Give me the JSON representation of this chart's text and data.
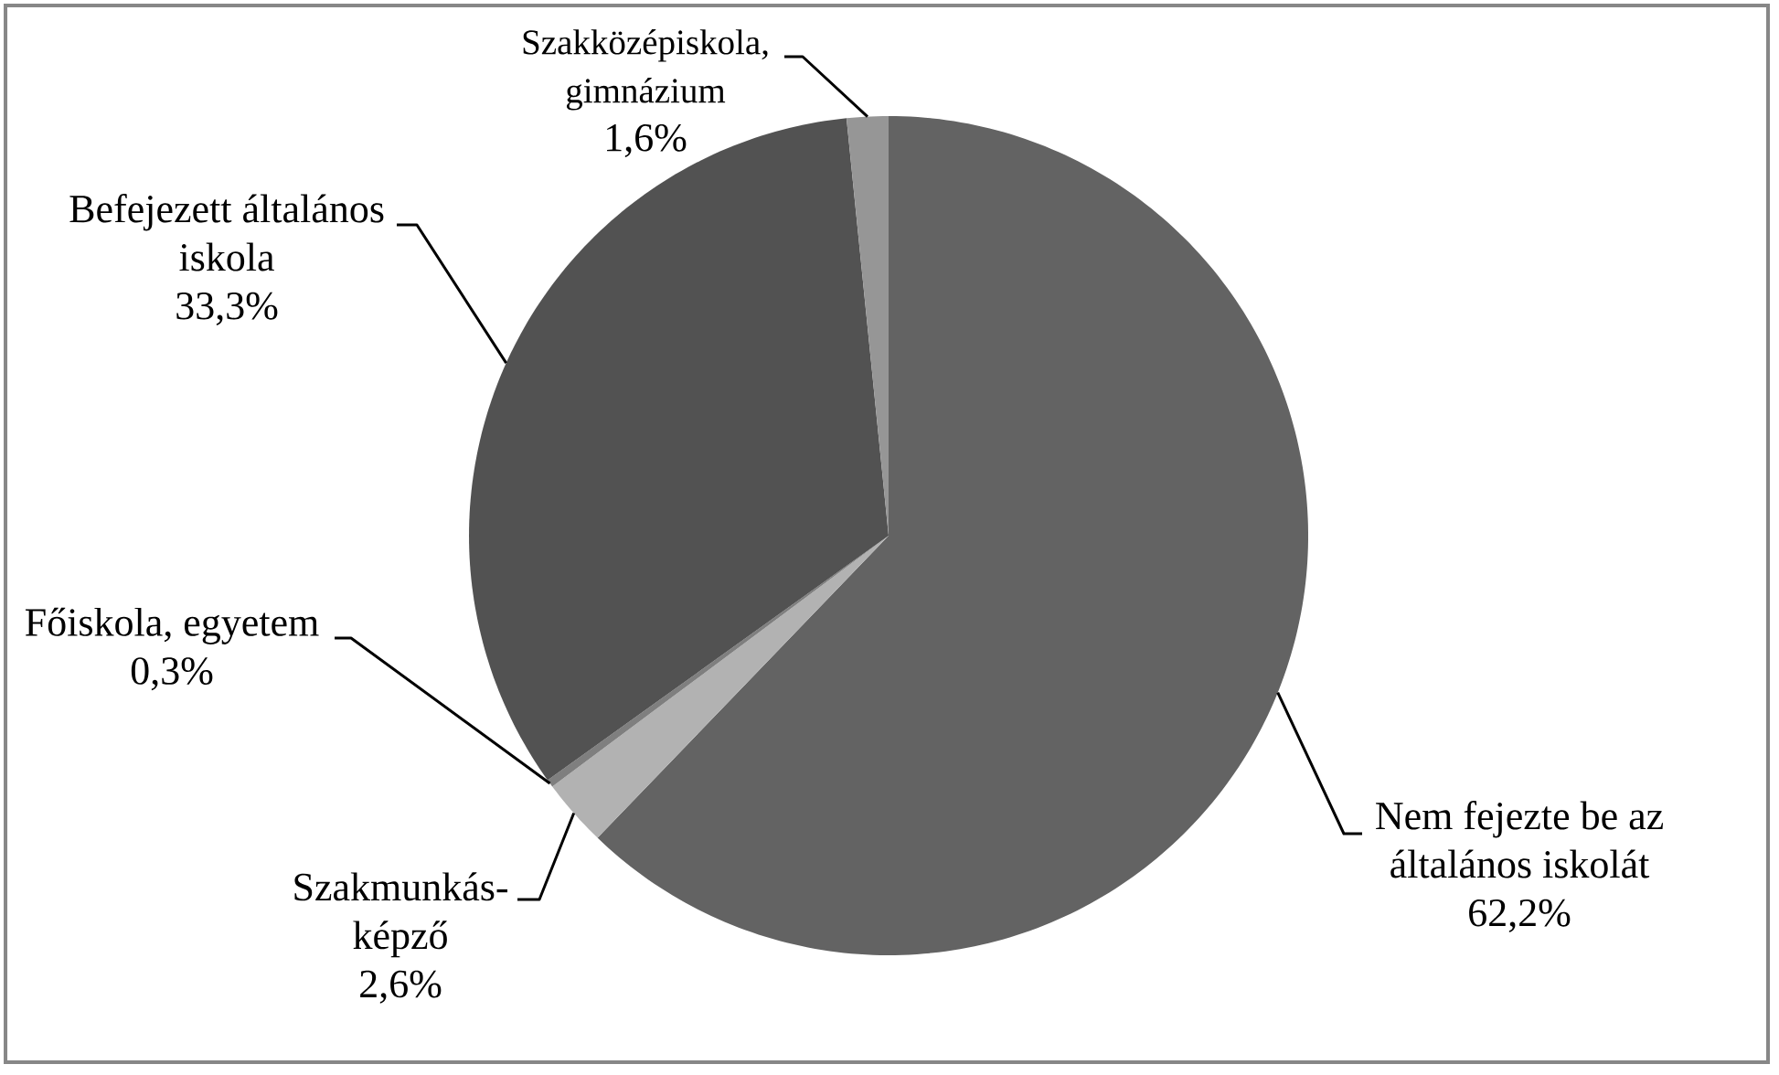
{
  "chart_data": {
    "type": "pie",
    "categories": [
      "Nem fejezte be az általános iskolát",
      "Szakmunkás-képző",
      "Főiskola, egyetem",
      "Befejezett általános iskola",
      "Szakközépiskola, gimnázium"
    ],
    "values": [
      62.2,
      2.6,
      0.3,
      33.3,
      1.6
    ],
    "colors": [
      "#636363",
      "#b2b2b2",
      "#7f7f7f",
      "#525252",
      "#969696"
    ],
    "value_labels": [
      "62,2%",
      "2,6%",
      "0,3%",
      "33,3%",
      "1,6%"
    ]
  }
}
